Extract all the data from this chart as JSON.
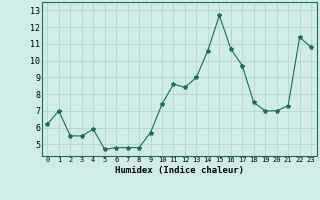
{
  "x": [
    0,
    1,
    2,
    3,
    4,
    5,
    6,
    7,
    8,
    9,
    10,
    11,
    12,
    13,
    14,
    15,
    16,
    17,
    18,
    19,
    20,
    21,
    22,
    23
  ],
  "y": [
    6.2,
    7.0,
    5.5,
    5.5,
    5.9,
    4.7,
    4.8,
    4.8,
    4.8,
    5.7,
    7.4,
    8.6,
    8.4,
    9.0,
    10.6,
    12.7,
    10.7,
    9.7,
    7.5,
    7.0,
    7.0,
    7.3,
    11.4,
    10.8
  ],
  "xlabel": "Humidex (Indice chaleur)",
  "ylabel_ticks": [
    5,
    6,
    7,
    8,
    9,
    10,
    11,
    12,
    13
  ],
  "ylim": [
    4.3,
    13.5
  ],
  "xlim": [
    -0.5,
    23.5
  ],
  "line_color": "#1a6b5e",
  "marker": "*",
  "marker_size": 3,
  "bg_color": "#d0ece8",
  "grid_color": "#b8d8d0",
  "axis_color": "#1a6b5e"
}
